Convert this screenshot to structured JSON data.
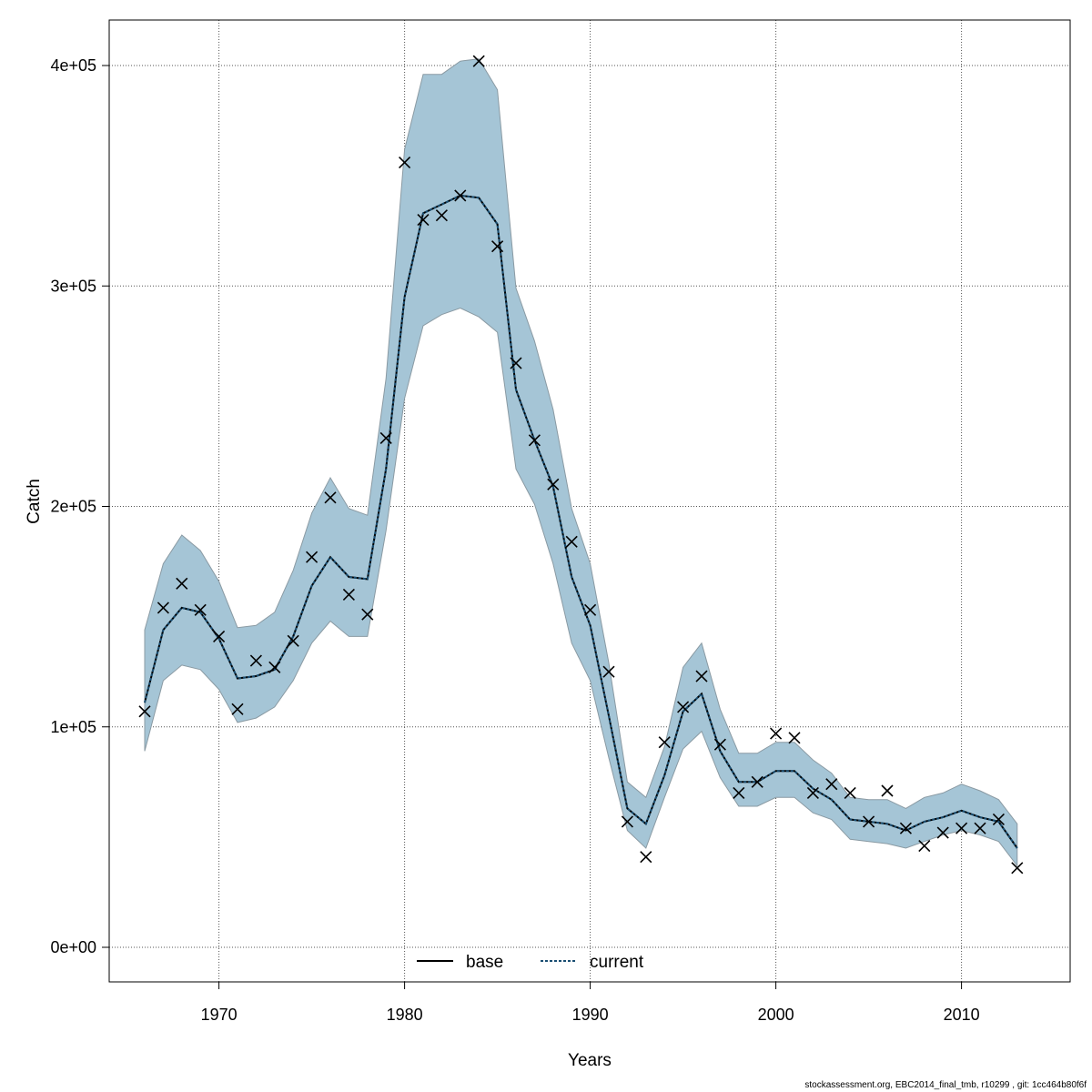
{
  "chart_data": {
    "type": "line",
    "xlabel": "Years",
    "ylabel": "Catch",
    "xlim": [
      1964,
      2016
    ],
    "ylim": [
      -15000,
      420000
    ],
    "x_ticks": [
      1970,
      1980,
      1990,
      2000,
      2010
    ],
    "x_tick_labels": [
      "1970",
      "1980",
      "1990",
      "2000",
      "2010"
    ],
    "y_ticks": [
      0,
      100000,
      200000,
      300000,
      400000
    ],
    "y_tick_labels": [
      "0e+00",
      "1e+05",
      "2e+05",
      "3e+05",
      "4e+05"
    ],
    "grid": true,
    "legend_position": "bottom",
    "legend": [
      {
        "label": "base",
        "color": "#000000",
        "style": "solid"
      },
      {
        "label": "current",
        "color": "#1a4f73",
        "style": "dotted"
      }
    ],
    "band_color": "#a5c5d6",
    "years": [
      1966,
      1967,
      1968,
      1969,
      1970,
      1971,
      1972,
      1973,
      1974,
      1975,
      1976,
      1977,
      1978,
      1979,
      1980,
      1981,
      1982,
      1983,
      1984,
      1985,
      1986,
      1987,
      1988,
      1989,
      1990,
      1991,
      1992,
      1993,
      1994,
      1995,
      1996,
      1997,
      1998,
      1999,
      2000,
      2001,
      2002,
      2003,
      2004,
      2005,
      2006,
      2007,
      2008,
      2009,
      2010,
      2011,
      2012,
      2013
    ],
    "series": [
      {
        "name": "base",
        "values": [
          111000,
          144000,
          154000,
          152000,
          140000,
          122000,
          123000,
          126000,
          141000,
          164000,
          177000,
          168000,
          167000,
          217000,
          295000,
          333000,
          337000,
          341000,
          340000,
          328000,
          253000,
          230000,
          209000,
          168000,
          146000,
          105000,
          63000,
          56000,
          78000,
          107000,
          115000,
          89000,
          75000,
          75000,
          80000,
          80000,
          72000,
          67000,
          58000,
          57000,
          56000,
          53000,
          57000,
          59000,
          62000,
          59000,
          57000,
          45000
        ]
      },
      {
        "name": "current",
        "values": [
          111000,
          144000,
          154000,
          152000,
          140000,
          122000,
          123000,
          126000,
          141000,
          164000,
          177000,
          168000,
          167000,
          217000,
          295000,
          333000,
          337000,
          341000,
          340000,
          328000,
          253000,
          230000,
          209000,
          168000,
          146000,
          105000,
          63000,
          56000,
          78000,
          107000,
          115000,
          89000,
          75000,
          75000,
          80000,
          80000,
          72000,
          67000,
          58000,
          57000,
          56000,
          53000,
          57000,
          59000,
          62000,
          59000,
          57000,
          45000
        ]
      }
    ],
    "band_lower": [
      89000,
      121000,
      128000,
      126000,
      117000,
      102000,
      104000,
      109000,
      121000,
      138000,
      148000,
      141000,
      141000,
      189000,
      249000,
      282000,
      287000,
      290000,
      286000,
      279000,
      217000,
      201000,
      174000,
      138000,
      121000,
      86000,
      53000,
      45000,
      68000,
      90000,
      98000,
      77000,
      64000,
      64000,
      68000,
      68000,
      61000,
      58000,
      49000,
      48000,
      47000,
      45000,
      48000,
      51000,
      53000,
      51000,
      48000,
      37000
    ],
    "band_upper": [
      144000,
      174000,
      187000,
      180000,
      166000,
      145000,
      146000,
      152000,
      171000,
      197000,
      213000,
      199000,
      196000,
      258000,
      362000,
      396000,
      396000,
      402000,
      403000,
      389000,
      299000,
      275000,
      244000,
      199000,
      174000,
      129000,
      75000,
      68000,
      91000,
      127000,
      138000,
      108000,
      88000,
      88000,
      93000,
      93000,
      85000,
      79000,
      68000,
      67000,
      67000,
      63000,
      68000,
      70000,
      74000,
      71000,
      67000,
      56000
    ],
    "observations": {
      "marker": "x",
      "x": [
        1966,
        1967,
        1968,
        1969,
        1970,
        1971,
        1972,
        1973,
        1974,
        1975,
        1976,
        1977,
        1978,
        1979,
        1980,
        1981,
        1982,
        1983,
        1984,
        1985,
        1986,
        1987,
        1988,
        1989,
        1990,
        1991,
        1992,
        1993,
        1994,
        1995,
        1996,
        1997,
        1998,
        1999,
        2000,
        2001,
        2002,
        2003,
        2004,
        2005,
        2006,
        2007,
        2008,
        2009,
        2010,
        2011,
        2012,
        2013
      ],
      "y": [
        107000,
        154000,
        165000,
        153000,
        141000,
        108000,
        130000,
        127000,
        139000,
        177000,
        204000,
        160000,
        151000,
        231000,
        356000,
        330000,
        332000,
        341000,
        402000,
        318000,
        265000,
        230000,
        210000,
        184000,
        153000,
        125000,
        57000,
        41000,
        93000,
        109000,
        123000,
        92000,
        70000,
        75000,
        97000,
        95000,
        70000,
        74000,
        70000,
        57000,
        71000,
        54000,
        46000,
        52000,
        54000,
        54000,
        58000,
        36000
      ]
    }
  },
  "footer": "stockassessment.org, EBC2014_final_tmb, r10299 , git: 1cc464b80f6f"
}
